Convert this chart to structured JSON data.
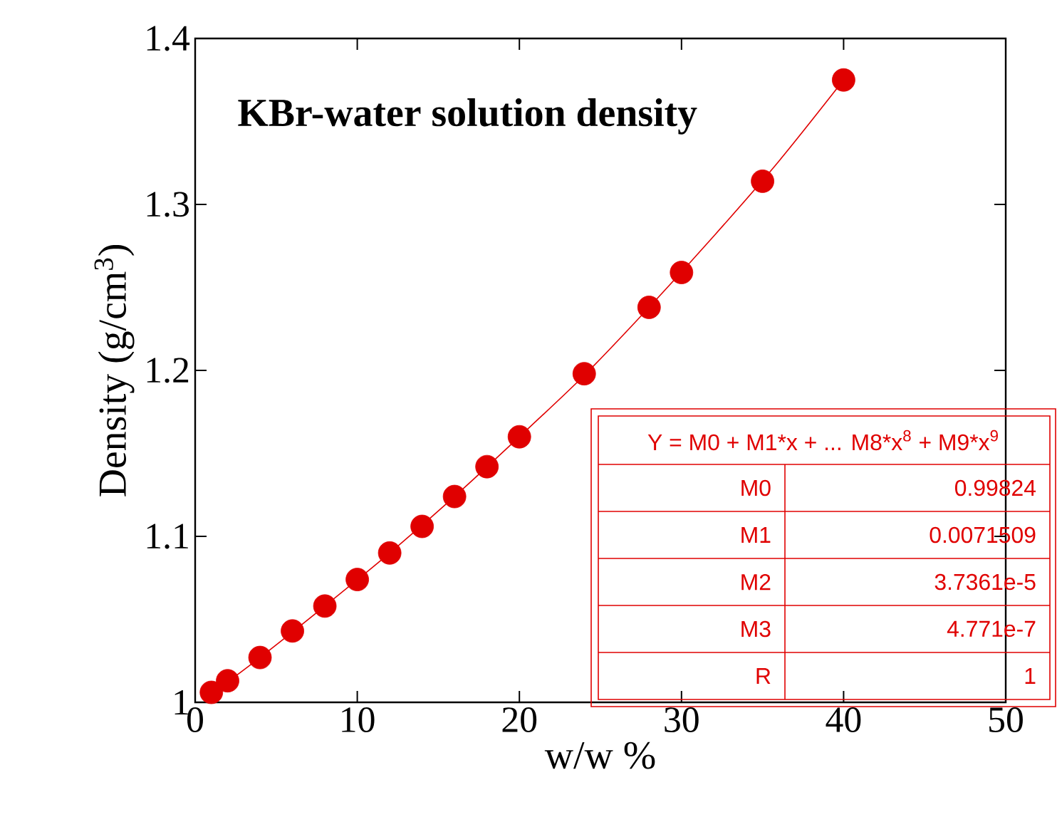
{
  "chart_data": {
    "type": "scatter",
    "title": "KBr-water solution density",
    "xlabel": "w/w %",
    "ylabel": "Density (g/cm$^{3}$)",
    "xlim": [
      0,
      50
    ],
    "ylim": [
      1,
      1.4
    ],
    "xticks": [
      0,
      10,
      20,
      30,
      40,
      50
    ],
    "yticks": [
      1,
      1.1,
      1.2,
      1.3,
      1.4
    ],
    "grid": false,
    "series": [
      {
        "marker": "circle",
        "color": "#e00000",
        "x": [
          1,
          2,
          4,
          6,
          8,
          10,
          12,
          14,
          16,
          18,
          20,
          24,
          28,
          30,
          35,
          40
        ],
        "values": [
          1.006,
          1.013,
          1.027,
          1.043,
          1.058,
          1.074,
          1.09,
          1.106,
          1.124,
          1.142,
          1.16,
          1.198,
          1.238,
          1.259,
          1.314,
          1.375
        ]
      },
      {
        "type": "line",
        "marker": "none",
        "color": "#e00000",
        "x": [
          1,
          4,
          8,
          12,
          16,
          20,
          24,
          28,
          32,
          36,
          40
        ],
        "values": [
          1.005,
          1.027,
          1.058,
          1.09,
          1.124,
          1.16,
          1.197,
          1.238,
          1.281,
          1.326,
          1.375
        ]
      }
    ],
    "annotations": [
      "Y = M0 + M1*x + ... M8*x$^{8}$ + M9*x$^{9}$",
      "M0",
      "0.99824",
      "M1",
      "0.0071509",
      "M2",
      "3.7361e-5",
      "M3",
      "4.771e-7",
      "R",
      "1"
    ]
  }
}
